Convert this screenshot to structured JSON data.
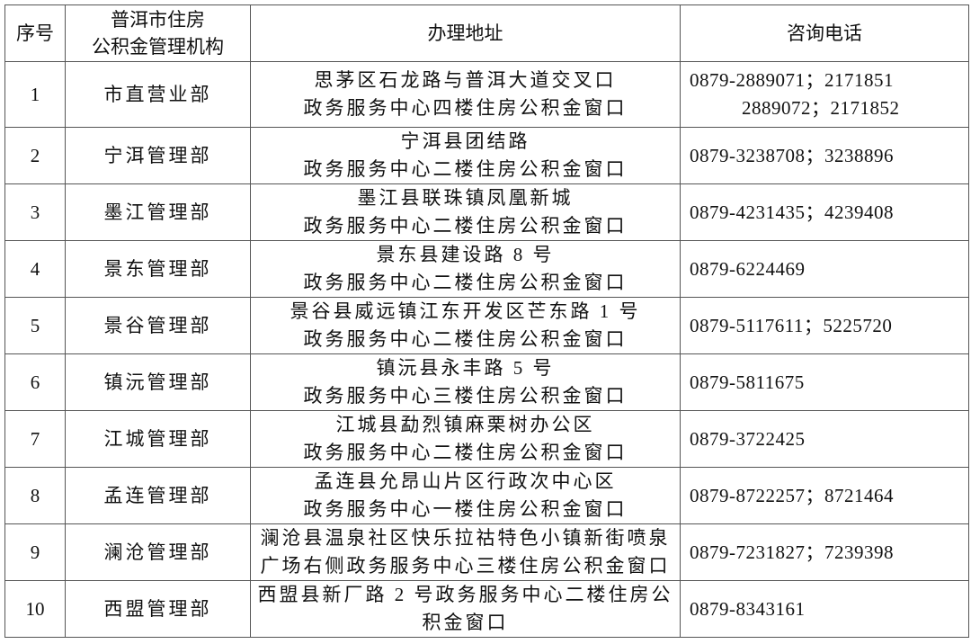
{
  "headers": {
    "no": "序号",
    "agency_line1": "普洱市住房",
    "agency_line2": "公积金管理机构",
    "address": "办理地址",
    "phone": "咨询电话"
  },
  "rows": [
    {
      "no": "1",
      "agency": "市直营业部",
      "addr1": "思茅区石龙路与普洱大道交叉口",
      "addr2": "政务服务中心四楼住房公积金窗口",
      "phone1": "0879-2889071；2171851",
      "phone2": "2889072；2171852"
    },
    {
      "no": "2",
      "agency": "宁洱管理部",
      "addr1": "宁洱县团结路",
      "addr2": "政务服务中心二楼住房公积金窗口",
      "phone1": "0879-3238708；3238896"
    },
    {
      "no": "3",
      "agency": "墨江管理部",
      "addr1": "墨江县联珠镇凤凰新城",
      "addr2": "政务服务中心二楼住房公积金窗口",
      "phone1": "0879-4231435；4239408"
    },
    {
      "no": "4",
      "agency": "景东管理部",
      "addr1": "景东县建设路 8 号",
      "addr2": "政务服务中心二楼住房公积金窗口",
      "phone1": "0879-6224469"
    },
    {
      "no": "5",
      "agency": "景谷管理部",
      "addr1": "景谷县威远镇江东开发区芒东路 1 号",
      "addr2": "政务服务中心二楼住房公积金窗口",
      "phone1": "0879-5117611；5225720"
    },
    {
      "no": "6",
      "agency": "镇沅管理部",
      "addr1": "镇沅县永丰路 5 号",
      "addr2": "政务服务中心三楼住房公积金窗口",
      "phone1": "0879-5811675"
    },
    {
      "no": "7",
      "agency": "江城管理部",
      "addr1": "江城县勐烈镇麻栗树办公区",
      "addr2": "政务服务中心二楼住房公积金窗口",
      "phone1": "0879-3722425"
    },
    {
      "no": "8",
      "agency": "孟连管理部",
      "addr1": "孟连县允昂山片区行政次中心区",
      "addr2": "政务服务中心一楼住房公积金窗口",
      "phone1": "0879-8722257；8721464"
    },
    {
      "no": "9",
      "agency": "澜沧管理部",
      "addr1": "澜沧县温泉社区快乐拉祜特色小镇新街喷泉",
      "addr2": "广场右侧政务服务中心三楼住房公积金窗口",
      "phone1": "0879-7231827；7239398"
    },
    {
      "no": "10",
      "agency": "西盟管理部",
      "addr1": "西盟县新厂路 2 号政务服务中心二楼住房公",
      "addr2": "积金窗口",
      "phone1": "0879-8343161"
    }
  ]
}
